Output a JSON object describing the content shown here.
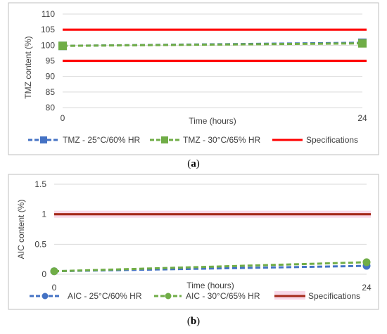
{
  "chart_data": [
    {
      "type": "line",
      "caption": "a",
      "title": "",
      "xlabel": "Time (hours)",
      "ylabel": "TMZ content (%)",
      "x": [
        0,
        24
      ],
      "x_ticks": [
        "0",
        "24"
      ],
      "ylim": [
        80,
        110
      ],
      "y_ticks": [
        "80",
        "85",
        "90",
        "95",
        "100",
        "105",
        "110"
      ],
      "grid": true,
      "legend": "bottom",
      "series": [
        {
          "name": "TMZ - 25°C/60% HR",
          "values": [
            99.8,
            100.8
          ],
          "color": "#4472C4",
          "marker": "square",
          "dash": true
        },
        {
          "name": "TMZ - 30°C/65% HR",
          "values": [
            99.8,
            100.6
          ],
          "color": "#70AD47",
          "marker": "square",
          "dash": true
        },
        {
          "name": "Specifications",
          "lines": [
            105,
            95
          ],
          "color": "#FF0000"
        }
      ]
    },
    {
      "type": "line",
      "caption": "b",
      "title": "",
      "xlabel": "Time (hours)",
      "ylabel": "AIC content (%)",
      "x": [
        0,
        24
      ],
      "x_ticks": [
        "0",
        "24"
      ],
      "ylim": [
        0,
        1.5
      ],
      "y_ticks": [
        "0",
        "0.5",
        "1",
        "1.5"
      ],
      "grid": true,
      "legend": "bottom",
      "series": [
        {
          "name": "AIC - 25°C/60% HR",
          "values": [
            0.05,
            0.14
          ],
          "color": "#4472C4",
          "marker": "circle",
          "dash": true
        },
        {
          "name": "AIC - 30°C/65% HR",
          "values": [
            0.05,
            0.2
          ],
          "color": "#70AD47",
          "marker": "circle",
          "dash": true
        },
        {
          "name": "Specifications",
          "lines": [
            1
          ],
          "color": "#A52A1B"
        }
      ]
    }
  ]
}
